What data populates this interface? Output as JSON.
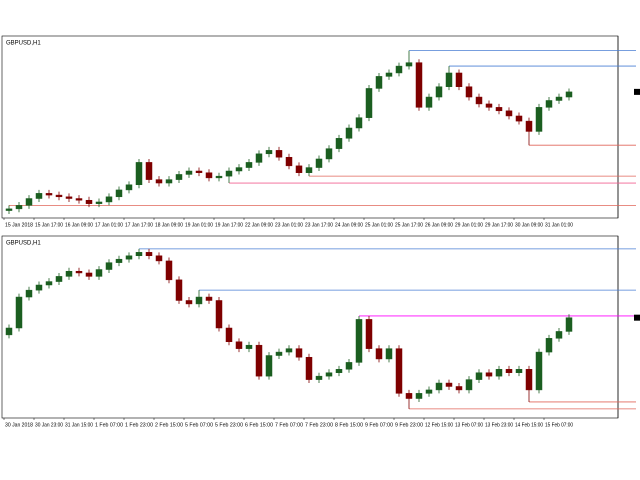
{
  "chart_data": [
    {
      "type": "candlestick",
      "title": "GBPUSD,H1",
      "x_labels": [
        "15 Jan 2018",
        "15 Jan 17:00",
        "16 Jan 09:00",
        "17 Jan 01:00",
        "17 Jan 17:00",
        "18 Jan 09:00",
        "19 Jan 01:00",
        "19 Jan 17:00",
        "22 Jan 09:00",
        "23 Jan 01:00",
        "23 Jan 17:00",
        "24 Jan 09:00",
        "25 Jan 01:00",
        "25 Jan 17:00",
        "26 Jan 09:00",
        "29 Jan 01:00",
        "29 Jan 17:00",
        "30 Jan 09:00",
        "31 Jan 01:00"
      ],
      "open": [
        2,
        3,
        5,
        9,
        12,
        11,
        10,
        9,
        8,
        6,
        7,
        10,
        14,
        17,
        30,
        20,
        18,
        20,
        23,
        25,
        24,
        21,
        22,
        25,
        27,
        30,
        35,
        37,
        33,
        28,
        24,
        27,
        32,
        38,
        44,
        50,
        56,
        73,
        80,
        82,
        86,
        88,
        62,
        68,
        74,
        82,
        74,
        68,
        64,
        62,
        60,
        57,
        54,
        48,
        62,
        66,
        68
      ],
      "high": [
        5,
        7,
        11,
        14,
        14,
        13,
        12,
        11,
        10,
        9,
        12,
        16,
        19,
        32,
        32,
        22,
        22,
        25,
        27,
        27,
        26,
        24,
        27,
        29,
        32,
        37,
        39,
        39,
        35,
        30,
        29,
        34,
        40,
        46,
        52,
        58,
        75,
        82,
        84,
        88,
        95,
        90,
        70,
        76,
        86,
        84,
        76,
        70,
        66,
        64,
        62,
        59,
        56,
        64,
        68,
        70,
        73
      ],
      "low": [
        0,
        1,
        3,
        7,
        9,
        8,
        7,
        6,
        4,
        4,
        5,
        8,
        12,
        15,
        18,
        16,
        16,
        18,
        21,
        22,
        19,
        19,
        18,
        23,
        25,
        28,
        33,
        31,
        26,
        22,
        22,
        25,
        30,
        36,
        42,
        48,
        54,
        71,
        78,
        80,
        84,
        60,
        60,
        66,
        72,
        72,
        66,
        62,
        60,
        58,
        55,
        52,
        40,
        46,
        60,
        64,
        66
      ],
      "close": [
        3,
        5,
        9,
        12,
        11,
        10,
        9,
        8,
        6,
        7,
        10,
        14,
        17,
        30,
        20,
        18,
        20,
        23,
        25,
        24,
        21,
        22,
        25,
        27,
        30,
        35,
        37,
        33,
        28,
        24,
        27,
        32,
        38,
        44,
        50,
        56,
        73,
        80,
        82,
        86,
        88,
        62,
        68,
        74,
        82,
        74,
        68,
        64,
        62,
        60,
        57,
        54,
        48,
        62,
        66,
        68,
        71
      ],
      "ylim": [
        0,
        100
      ],
      "up_color": "#1b5e20",
      "down_color": "#7f0000",
      "levels": [
        {
          "value": 95,
          "color": "#4a7fd4",
          "from": 40
        },
        {
          "value": 86,
          "color": "#4a7fd4",
          "from": 44
        },
        {
          "value": 40,
          "color": "#e0665a",
          "from": 52
        },
        {
          "value": 22,
          "color": "#e0665a",
          "from": 30
        },
        {
          "value": 18,
          "color": "#f06090",
          "from": 22
        },
        {
          "value": 5,
          "color": "#e0665a",
          "from": 0
        }
      ]
    },
    {
      "type": "candlestick",
      "title": "GBPUSD,H1",
      "x_labels": [
        "30 Jan 2018",
        "30 Jan 23:00",
        "31 Jan 15:00",
        "1 Feb 07:00",
        "1 Feb 23:00",
        "2 Feb 15:00",
        "5 Feb 07:00",
        "5 Feb 23:00",
        "6 Feb 15:00",
        "7 Feb 07:00",
        "7 Feb 23:00",
        "8 Feb 15:00",
        "9 Feb 07:00",
        "9 Feb 23:00",
        "12 Feb 15:00",
        "13 Feb 07:00",
        "13 Feb 23:00",
        "14 Feb 15:00",
        "15 Feb 07:00"
      ],
      "open": [
        46,
        50,
        68,
        72,
        75,
        77,
        80,
        83,
        82,
        80,
        84,
        88,
        90,
        92,
        94,
        92,
        89,
        78,
        66,
        64,
        68,
        66,
        50,
        42,
        38,
        40,
        22,
        34,
        36,
        38,
        33,
        20,
        22,
        24,
        26,
        30,
        55,
        38,
        32,
        38,
        12,
        9,
        12,
        14,
        18,
        16,
        14,
        20,
        24,
        22,
        26,
        24,
        26,
        14,
        36,
        44,
        48
      ],
      "high": [
        52,
        70,
        74,
        77,
        79,
        82,
        85,
        85,
        84,
        86,
        90,
        92,
        94,
        96,
        96,
        94,
        91,
        80,
        68,
        72,
        70,
        68,
        52,
        44,
        42,
        42,
        36,
        38,
        40,
        40,
        35,
        24,
        26,
        28,
        32,
        57,
        57,
        40,
        40,
        40,
        14,
        14,
        16,
        20,
        20,
        18,
        22,
        26,
        26,
        28,
        28,
        28,
        28,
        38,
        46,
        50,
        58
      ],
      "low": [
        44,
        48,
        66,
        70,
        73,
        75,
        78,
        80,
        78,
        78,
        82,
        86,
        88,
        90,
        90,
        87,
        76,
        64,
        62,
        62,
        64,
        48,
        40,
        36,
        36,
        20,
        20,
        32,
        34,
        31,
        18,
        18,
        20,
        22,
        24,
        28,
        36,
        30,
        30,
        10,
        3,
        7,
        10,
        12,
        14,
        12,
        12,
        18,
        20,
        20,
        22,
        22,
        7,
        12,
        34,
        42,
        46
      ],
      "close": [
        50,
        68,
        72,
        75,
        77,
        80,
        83,
        82,
        80,
        84,
        88,
        90,
        92,
        94,
        92,
        89,
        78,
        66,
        64,
        68,
        66,
        50,
        42,
        38,
        40,
        22,
        34,
        36,
        38,
        33,
        20,
        22,
        24,
        26,
        30,
        55,
        38,
        32,
        38,
        12,
        9,
        12,
        14,
        18,
        16,
        14,
        20,
        24,
        22,
        26,
        24,
        26,
        14,
        36,
        44,
        48,
        56
      ],
      "ylim": [
        0,
        100
      ],
      "up_color": "#1b5e20",
      "down_color": "#7f0000",
      "levels": [
        {
          "value": 96,
          "color": "#4a7fd4",
          "from": 13
        },
        {
          "value": 72,
          "color": "#4a7fd4",
          "from": 19
        },
        {
          "value": 57,
          "color": "#ff00ff",
          "from": 35
        },
        {
          "value": 7,
          "color": "#e0665a",
          "from": 52
        },
        {
          "value": 3,
          "color": "#e0665a",
          "from": 40
        }
      ]
    }
  ]
}
